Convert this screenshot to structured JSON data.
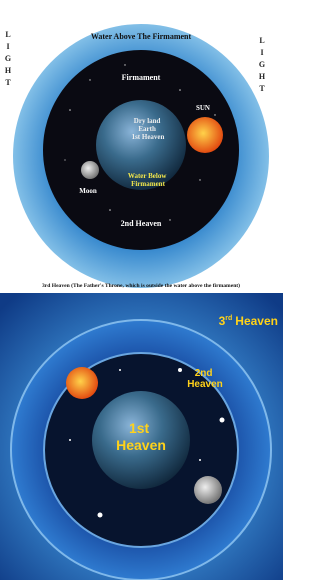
{
  "top": {
    "light_left": "LIGHT",
    "light_right": "LIGHT",
    "title": "Water Above The Firmament",
    "firmament": "Firmament",
    "sun": "SUN",
    "earth_lines": [
      "Dry land",
      "Earth",
      "1st Heaven"
    ],
    "water_below_lines": [
      "Water Below",
      "Firmament"
    ],
    "moon": "Moon",
    "second_heaven": "2nd Heaven",
    "caption": "3rd Heaven (The Father's Throne, which is outside the water above the firmament)"
  },
  "bottom": {
    "third_heaven": {
      "number": "3",
      "suffix": "rd",
      "word": "Heaven"
    },
    "second_heaven_lines": [
      "2nd",
      "Heaven"
    ],
    "first_heaven_lines": [
      "1st",
      "Heaven"
    ]
  }
}
